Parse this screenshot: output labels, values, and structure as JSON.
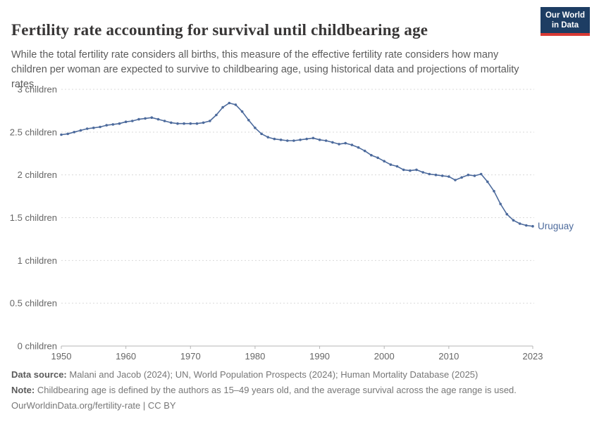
{
  "header": {
    "title": "Fertility rate accounting for survival until childbearing age",
    "subtitle": "While the total fertility rate considers all births, this measure of the effective fertility rate considers how many children per woman are expected to survive to childbearing age, using historical data and projections of mortality rates.",
    "logo": {
      "line1": "Our World",
      "line2": "in Data",
      "bg_color": "#1d3d63",
      "accent_color": "#d93a34"
    }
  },
  "footer": {
    "data_source_label": "Data source:",
    "data_source_text": "Malani and Jacob (2024); UN, World Population Prospects (2024); Human Mortality Database (2025)",
    "note_label": "Note:",
    "note_text": "Childbearing age is defined by the authors as 15–49 years old, and the average survival across the age range is used.",
    "permalink": "OurWorldinData.org/fertility-rate | CC BY"
  },
  "chart_data": {
    "type": "line",
    "title": "Fertility rate accounting for survival until childbearing age",
    "xlabel": "",
    "ylabel": "",
    "xlim": [
      1950,
      2023
    ],
    "ylim": [
      0,
      3
    ],
    "grid": true,
    "legend_position": "end-of-line",
    "x_ticks": [
      1950,
      1960,
      1970,
      1980,
      1990,
      2000,
      2010,
      2023
    ],
    "y_ticks": [
      {
        "value": 0,
        "label": "0 children"
      },
      {
        "value": 0.5,
        "label": "0.5 children"
      },
      {
        "value": 1,
        "label": "1 children"
      },
      {
        "value": 1.5,
        "label": "1.5 children"
      },
      {
        "value": 2,
        "label": "2 children"
      },
      {
        "value": 2.5,
        "label": "2.5 children"
      },
      {
        "value": 3,
        "label": "3 children"
      }
    ],
    "years": [
      1950,
      1951,
      1952,
      1953,
      1954,
      1955,
      1956,
      1957,
      1958,
      1959,
      1960,
      1961,
      1962,
      1963,
      1964,
      1965,
      1966,
      1967,
      1968,
      1969,
      1970,
      1971,
      1972,
      1973,
      1974,
      1975,
      1976,
      1977,
      1978,
      1979,
      1980,
      1981,
      1982,
      1983,
      1984,
      1985,
      1986,
      1987,
      1988,
      1989,
      1990,
      1991,
      1992,
      1993,
      1994,
      1995,
      1996,
      1997,
      1998,
      1999,
      2000,
      2001,
      2002,
      2003,
      2004,
      2005,
      2006,
      2007,
      2008,
      2009,
      2010,
      2011,
      2012,
      2013,
      2014,
      2015,
      2016,
      2017,
      2018,
      2019,
      2020,
      2021,
      2022,
      2023
    ],
    "series": [
      {
        "name": "Uruguay",
        "color": "#4C6A9C",
        "values": [
          2.47,
          2.48,
          2.5,
          2.52,
          2.54,
          2.55,
          2.56,
          2.58,
          2.59,
          2.6,
          2.62,
          2.63,
          2.65,
          2.66,
          2.67,
          2.65,
          2.63,
          2.61,
          2.6,
          2.6,
          2.6,
          2.6,
          2.61,
          2.63,
          2.7,
          2.79,
          2.84,
          2.82,
          2.74,
          2.64,
          2.55,
          2.48,
          2.44,
          2.42,
          2.41,
          2.4,
          2.4,
          2.41,
          2.42,
          2.43,
          2.41,
          2.4,
          2.38,
          2.36,
          2.37,
          2.35,
          2.32,
          2.28,
          2.23,
          2.2,
          2.16,
          2.12,
          2.1,
          2.06,
          2.05,
          2.06,
          2.03,
          2.01,
          2.0,
          1.99,
          1.98,
          1.94,
          1.97,
          2.0,
          1.99,
          2.01,
          1.92,
          1.81,
          1.66,
          1.54,
          1.47,
          1.43,
          1.41,
          1.4
        ]
      }
    ],
    "colors": {
      "gridline": "#d9d9d9",
      "axis": "#b5b5b5",
      "tick_text": "#666666"
    }
  }
}
